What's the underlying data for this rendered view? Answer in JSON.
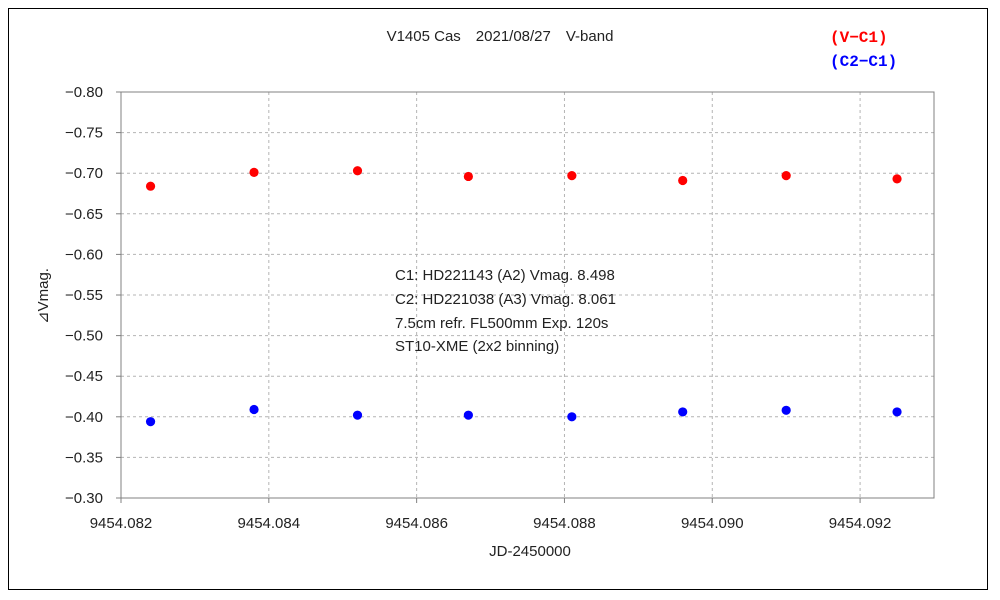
{
  "chart_data": {
    "type": "scatter",
    "title": "V1405 Cas　2021/08/27　V-band",
    "xlabel": "JD-2450000",
    "ylabel": "⊿Vmag.",
    "xlim": [
      9454.082,
      9454.093
    ],
    "ylim": [
      -0.8,
      -0.3
    ],
    "y_inverted": true,
    "x_ticks": [
      9454.082,
      9454.084,
      9454.086,
      9454.088,
      9454.09,
      9454.092
    ],
    "x_tick_labels": [
      "9454.082",
      "9454.084",
      "9454.086",
      "9454.088",
      "9454.090",
      "9454.092"
    ],
    "y_ticks": [
      -0.8,
      -0.75,
      -0.7,
      -0.65,
      -0.6,
      -0.55,
      -0.5,
      -0.45,
      -0.4,
      -0.35,
      -0.3
    ],
    "y_tick_labels": [
      "−0.80",
      "−0.75",
      "−0.70",
      "−0.65",
      "−0.60",
      "−0.55",
      "−0.50",
      "−0.45",
      "−0.40",
      "−0.35",
      "−0.30"
    ],
    "grid": true,
    "legend_position": "top-right",
    "series": [
      {
        "name": "(V−C1)",
        "color": "#ff0000",
        "x": [
          9454.0824,
          9454.0838,
          9454.0852,
          9454.0867,
          9454.0881,
          9454.0896,
          9454.091,
          9454.0925
        ],
        "y": [
          -0.684,
          -0.701,
          -0.703,
          -0.696,
          -0.697,
          -0.691,
          -0.697,
          -0.693
        ]
      },
      {
        "name": "(C2−C1)",
        "color": "#0000ff",
        "x": [
          9454.0824,
          9454.0838,
          9454.0852,
          9454.0867,
          9454.0881,
          9454.0896,
          9454.091,
          9454.0925
        ],
        "y": [
          -0.394,
          -0.409,
          -0.402,
          -0.402,
          -0.4,
          -0.406,
          -0.408,
          -0.406
        ]
      }
    ],
    "annotations": [
      "C1: HD221143 (A2) Vmag. 8.498",
      "C2: HD221038 (A3) Vmag. 8.061",
      "7.5cm refr. FL500mm Exp. 120s",
      "ST10-XME (2x2 binning)"
    ]
  },
  "colors": {
    "grid": "#b4b4b4",
    "axis": "#808080",
    "text": "#222222"
  }
}
